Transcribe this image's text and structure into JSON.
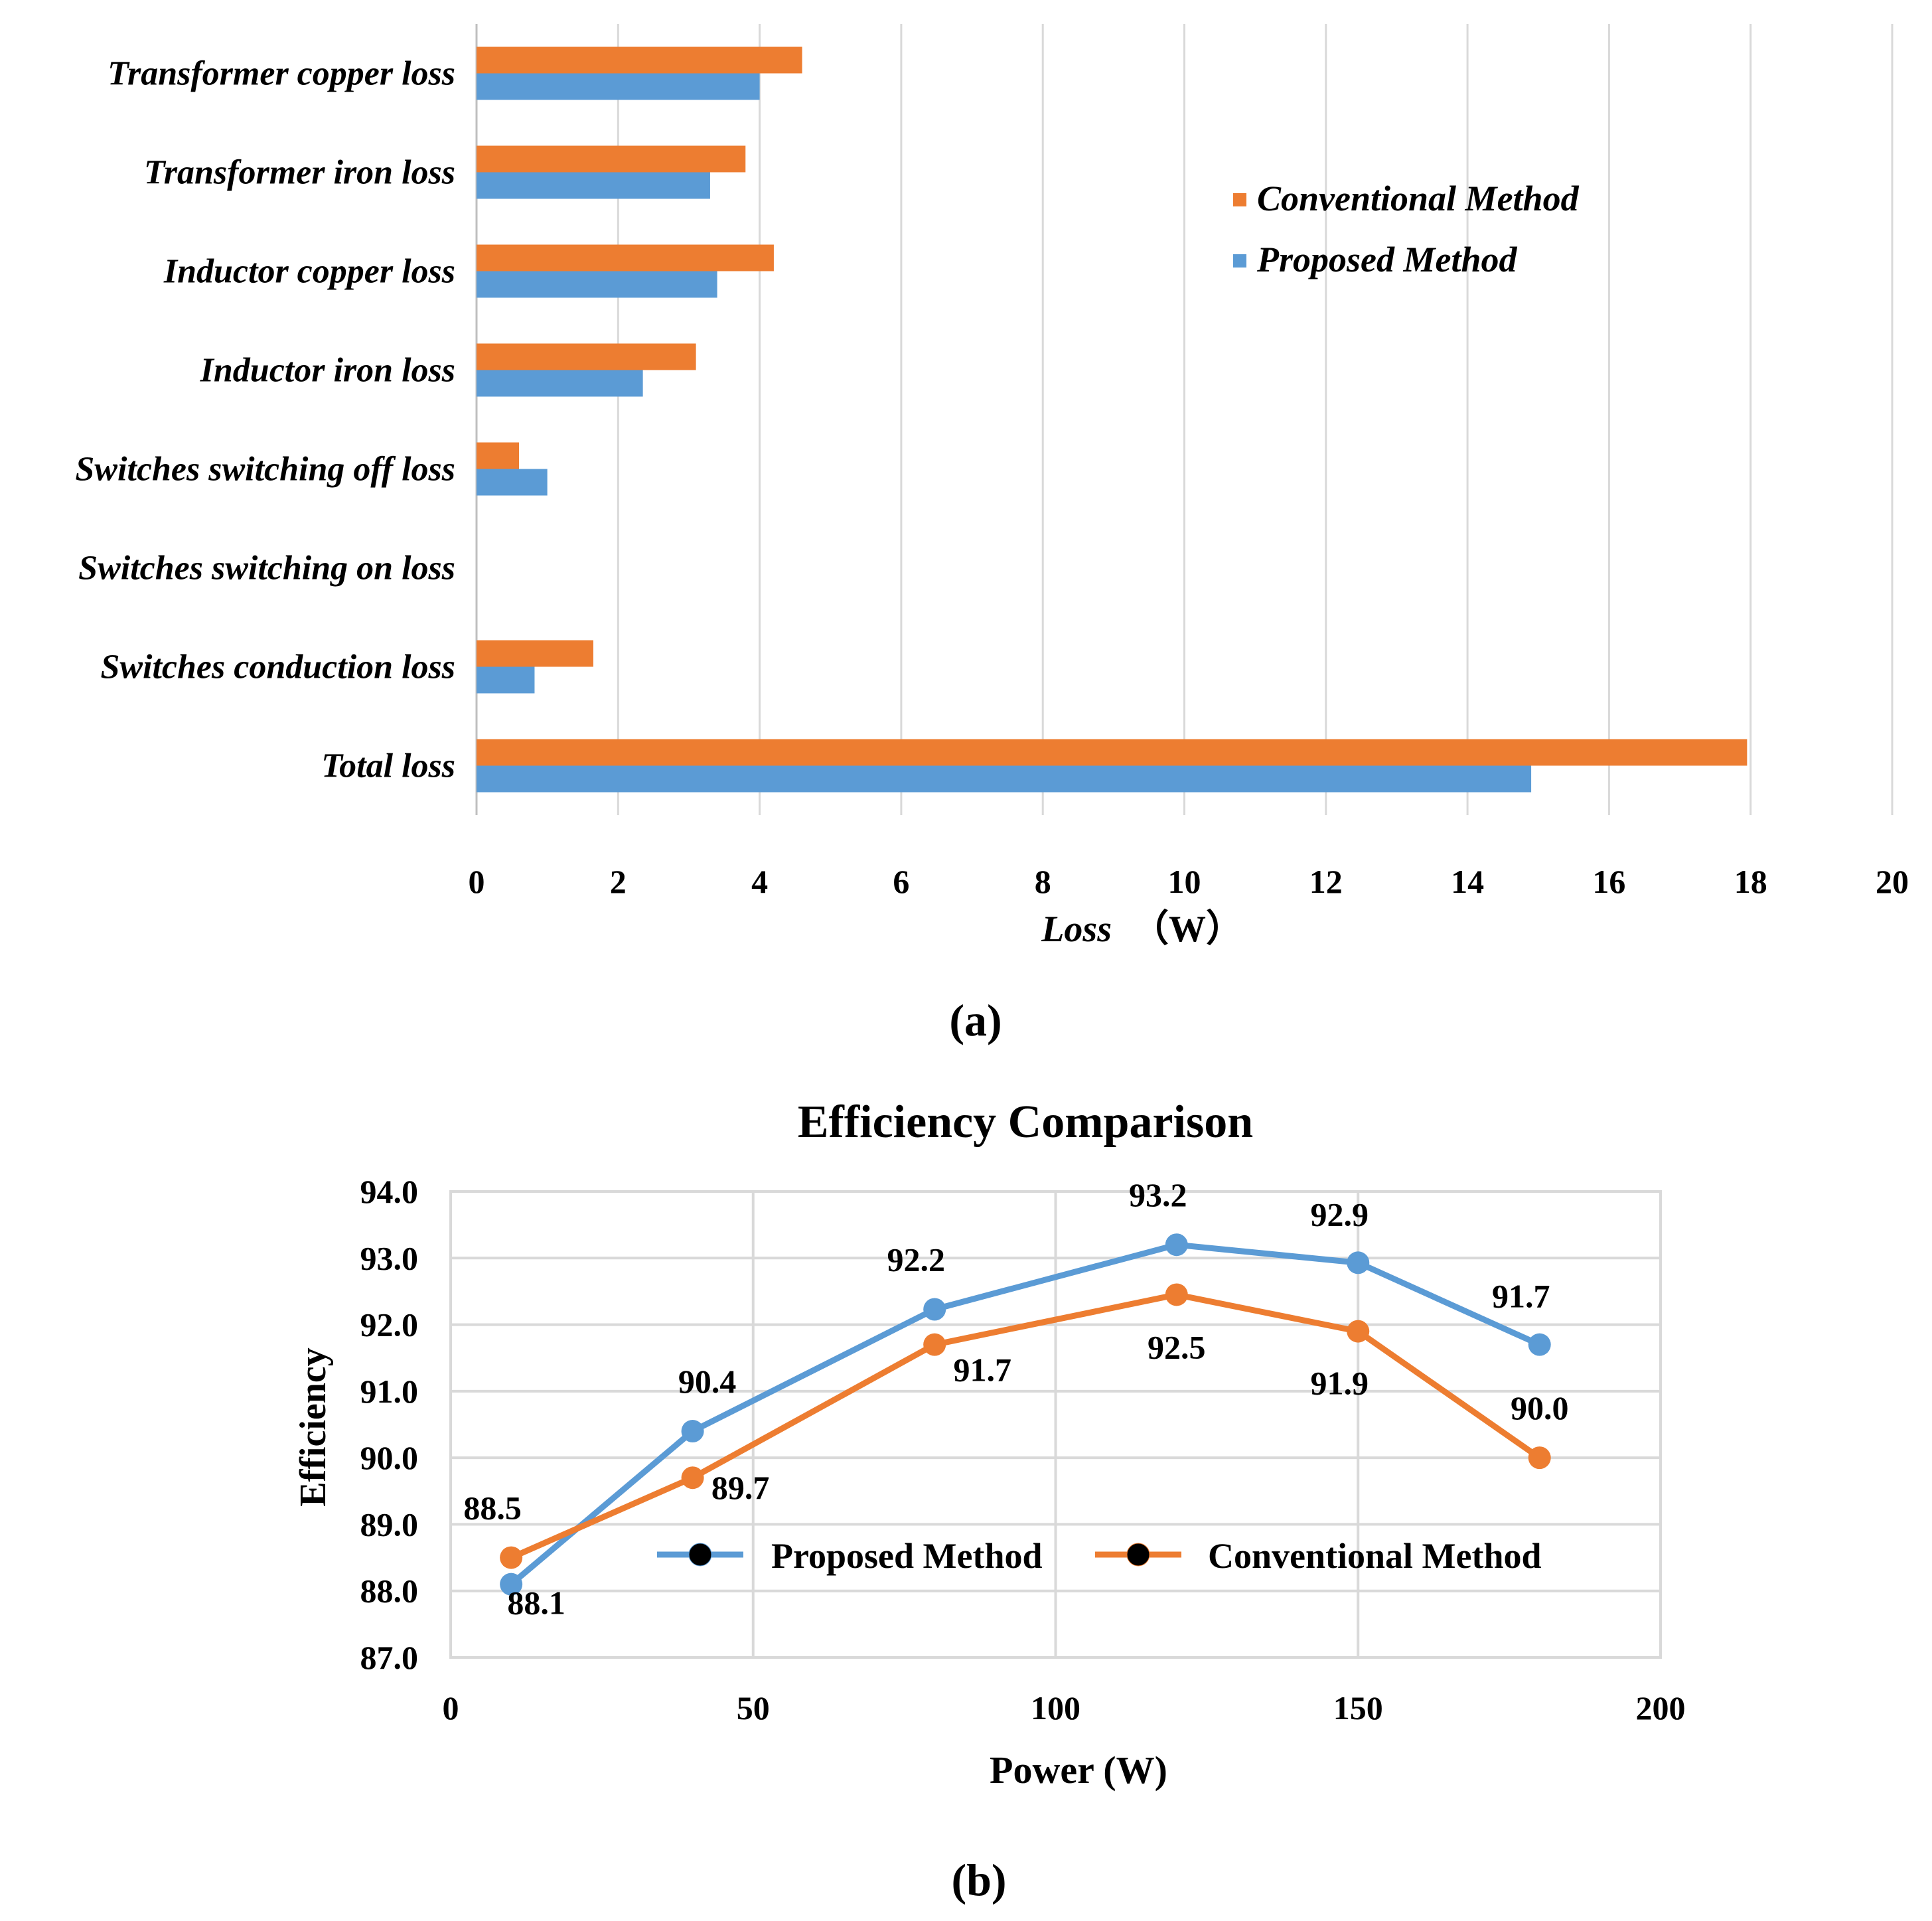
{
  "colors": {
    "conventional": "#ED7D31",
    "proposed": "#5B9BD5",
    "grid": "#D9D9D9",
    "axis": "#BFBFBF"
  },
  "chart_data": [
    {
      "type": "bar",
      "orientation": "horizontal",
      "panel_label": "(a)",
      "title": "",
      "xlabel": "Loss",
      "xlabel_unit": "（W）",
      "ylabel": "",
      "xlim": [
        0,
        20
      ],
      "xticks": [
        "0",
        "2",
        "4",
        "6",
        "8",
        "10",
        "12",
        "14",
        "16",
        "18",
        "20"
      ],
      "categories": [
        "Transformer copper loss",
        "Transformer iron loss",
        "Inductor copper loss",
        "Inductor iron loss",
        "Switches switching off loss",
        "Switches switching on loss",
        "Switches conduction loss",
        "Total loss"
      ],
      "series": [
        {
          "name": "Conventional Method",
          "values": [
            4.6,
            3.8,
            4.2,
            3.1,
            0.6,
            0,
            1.65,
            17.95
          ]
        },
        {
          "name": "Proposed Method",
          "values": [
            4.0,
            3.3,
            3.4,
            2.35,
            1.0,
            0,
            0.82,
            14.9
          ]
        }
      ],
      "legend": [
        "Conventional Method",
        "Proposed Method"
      ],
      "legend_position": "upper-right",
      "grid": "vertical"
    },
    {
      "type": "line",
      "panel_label": "(b)",
      "title": "Efficiency Comparison",
      "xlabel": "Power (W)",
      "ylabel": "Efficiency",
      "xlim": [
        0,
        200
      ],
      "ylim": [
        87.0,
        94.0
      ],
      "xticks": [
        "0",
        "50",
        "100",
        "150",
        "200"
      ],
      "yticks": [
        "87.0",
        "88.0",
        "89.0",
        "90.0",
        "91.0",
        "92.0",
        "93.0",
        "94.0"
      ],
      "x": [
        10,
        40,
        80,
        120,
        150,
        180
      ],
      "series": [
        {
          "name": "Proposed Method",
          "values": [
            88.1,
            90.4,
            92.23,
            93.2,
            92.93,
            91.7
          ],
          "labels": [
            "88.1",
            "90.4",
            "92.2",
            "93.2",
            "92.9",
            "91.7"
          ]
        },
        {
          "name": "Conventional Method",
          "values": [
            88.5,
            89.7,
            91.7,
            92.45,
            91.9,
            90.0
          ],
          "labels": [
            "88.5",
            "89.7",
            "91.7",
            "92.5",
            "91.9",
            "90.0"
          ]
        }
      ],
      "legend": [
        "Proposed Method",
        "Conventional  Method"
      ],
      "legend_position": "inside-lower-center",
      "grid": "both"
    }
  ]
}
